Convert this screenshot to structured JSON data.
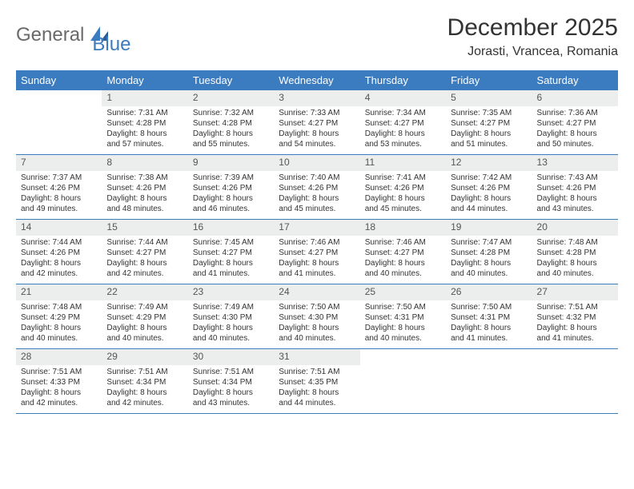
{
  "logo": {
    "text1": "General",
    "text2": "Blue"
  },
  "title": "December 2025",
  "location": "Jorasti, Vrancea, Romania",
  "colors": {
    "header_bg": "#3b7bbf",
    "day_num_bg": "#eceded",
    "row_border": "#3b7bbf",
    "logo_gray": "#6a6a6a",
    "logo_blue": "#3b7bbf"
  },
  "weekdays": [
    "Sunday",
    "Monday",
    "Tuesday",
    "Wednesday",
    "Thursday",
    "Friday",
    "Saturday"
  ],
  "weeks": [
    [
      null,
      {
        "n": "1",
        "sr": "Sunrise: 7:31 AM",
        "ss": "Sunset: 4:28 PM",
        "d1": "Daylight: 8 hours",
        "d2": "and 57 minutes."
      },
      {
        "n": "2",
        "sr": "Sunrise: 7:32 AM",
        "ss": "Sunset: 4:28 PM",
        "d1": "Daylight: 8 hours",
        "d2": "and 55 minutes."
      },
      {
        "n": "3",
        "sr": "Sunrise: 7:33 AM",
        "ss": "Sunset: 4:27 PM",
        "d1": "Daylight: 8 hours",
        "d2": "and 54 minutes."
      },
      {
        "n": "4",
        "sr": "Sunrise: 7:34 AM",
        "ss": "Sunset: 4:27 PM",
        "d1": "Daylight: 8 hours",
        "d2": "and 53 minutes."
      },
      {
        "n": "5",
        "sr": "Sunrise: 7:35 AM",
        "ss": "Sunset: 4:27 PM",
        "d1": "Daylight: 8 hours",
        "d2": "and 51 minutes."
      },
      {
        "n": "6",
        "sr": "Sunrise: 7:36 AM",
        "ss": "Sunset: 4:27 PM",
        "d1": "Daylight: 8 hours",
        "d2": "and 50 minutes."
      }
    ],
    [
      {
        "n": "7",
        "sr": "Sunrise: 7:37 AM",
        "ss": "Sunset: 4:26 PM",
        "d1": "Daylight: 8 hours",
        "d2": "and 49 minutes."
      },
      {
        "n": "8",
        "sr": "Sunrise: 7:38 AM",
        "ss": "Sunset: 4:26 PM",
        "d1": "Daylight: 8 hours",
        "d2": "and 48 minutes."
      },
      {
        "n": "9",
        "sr": "Sunrise: 7:39 AM",
        "ss": "Sunset: 4:26 PM",
        "d1": "Daylight: 8 hours",
        "d2": "and 46 minutes."
      },
      {
        "n": "10",
        "sr": "Sunrise: 7:40 AM",
        "ss": "Sunset: 4:26 PM",
        "d1": "Daylight: 8 hours",
        "d2": "and 45 minutes."
      },
      {
        "n": "11",
        "sr": "Sunrise: 7:41 AM",
        "ss": "Sunset: 4:26 PM",
        "d1": "Daylight: 8 hours",
        "d2": "and 45 minutes."
      },
      {
        "n": "12",
        "sr": "Sunrise: 7:42 AM",
        "ss": "Sunset: 4:26 PM",
        "d1": "Daylight: 8 hours",
        "d2": "and 44 minutes."
      },
      {
        "n": "13",
        "sr": "Sunrise: 7:43 AM",
        "ss": "Sunset: 4:26 PM",
        "d1": "Daylight: 8 hours",
        "d2": "and 43 minutes."
      }
    ],
    [
      {
        "n": "14",
        "sr": "Sunrise: 7:44 AM",
        "ss": "Sunset: 4:26 PM",
        "d1": "Daylight: 8 hours",
        "d2": "and 42 minutes."
      },
      {
        "n": "15",
        "sr": "Sunrise: 7:44 AM",
        "ss": "Sunset: 4:27 PM",
        "d1": "Daylight: 8 hours",
        "d2": "and 42 minutes."
      },
      {
        "n": "16",
        "sr": "Sunrise: 7:45 AM",
        "ss": "Sunset: 4:27 PM",
        "d1": "Daylight: 8 hours",
        "d2": "and 41 minutes."
      },
      {
        "n": "17",
        "sr": "Sunrise: 7:46 AM",
        "ss": "Sunset: 4:27 PM",
        "d1": "Daylight: 8 hours",
        "d2": "and 41 minutes."
      },
      {
        "n": "18",
        "sr": "Sunrise: 7:46 AM",
        "ss": "Sunset: 4:27 PM",
        "d1": "Daylight: 8 hours",
        "d2": "and 40 minutes."
      },
      {
        "n": "19",
        "sr": "Sunrise: 7:47 AM",
        "ss": "Sunset: 4:28 PM",
        "d1": "Daylight: 8 hours",
        "d2": "and 40 minutes."
      },
      {
        "n": "20",
        "sr": "Sunrise: 7:48 AM",
        "ss": "Sunset: 4:28 PM",
        "d1": "Daylight: 8 hours",
        "d2": "and 40 minutes."
      }
    ],
    [
      {
        "n": "21",
        "sr": "Sunrise: 7:48 AM",
        "ss": "Sunset: 4:29 PM",
        "d1": "Daylight: 8 hours",
        "d2": "and 40 minutes."
      },
      {
        "n": "22",
        "sr": "Sunrise: 7:49 AM",
        "ss": "Sunset: 4:29 PM",
        "d1": "Daylight: 8 hours",
        "d2": "and 40 minutes."
      },
      {
        "n": "23",
        "sr": "Sunrise: 7:49 AM",
        "ss": "Sunset: 4:30 PM",
        "d1": "Daylight: 8 hours",
        "d2": "and 40 minutes."
      },
      {
        "n": "24",
        "sr": "Sunrise: 7:50 AM",
        "ss": "Sunset: 4:30 PM",
        "d1": "Daylight: 8 hours",
        "d2": "and 40 minutes."
      },
      {
        "n": "25",
        "sr": "Sunrise: 7:50 AM",
        "ss": "Sunset: 4:31 PM",
        "d1": "Daylight: 8 hours",
        "d2": "and 40 minutes."
      },
      {
        "n": "26",
        "sr": "Sunrise: 7:50 AM",
        "ss": "Sunset: 4:31 PM",
        "d1": "Daylight: 8 hours",
        "d2": "and 41 minutes."
      },
      {
        "n": "27",
        "sr": "Sunrise: 7:51 AM",
        "ss": "Sunset: 4:32 PM",
        "d1": "Daylight: 8 hours",
        "d2": "and 41 minutes."
      }
    ],
    [
      {
        "n": "28",
        "sr": "Sunrise: 7:51 AM",
        "ss": "Sunset: 4:33 PM",
        "d1": "Daylight: 8 hours",
        "d2": "and 42 minutes."
      },
      {
        "n": "29",
        "sr": "Sunrise: 7:51 AM",
        "ss": "Sunset: 4:34 PM",
        "d1": "Daylight: 8 hours",
        "d2": "and 42 minutes."
      },
      {
        "n": "30",
        "sr": "Sunrise: 7:51 AM",
        "ss": "Sunset: 4:34 PM",
        "d1": "Daylight: 8 hours",
        "d2": "and 43 minutes."
      },
      {
        "n": "31",
        "sr": "Sunrise: 7:51 AM",
        "ss": "Sunset: 4:35 PM",
        "d1": "Daylight: 8 hours",
        "d2": "and 44 minutes."
      },
      null,
      null,
      null
    ]
  ]
}
